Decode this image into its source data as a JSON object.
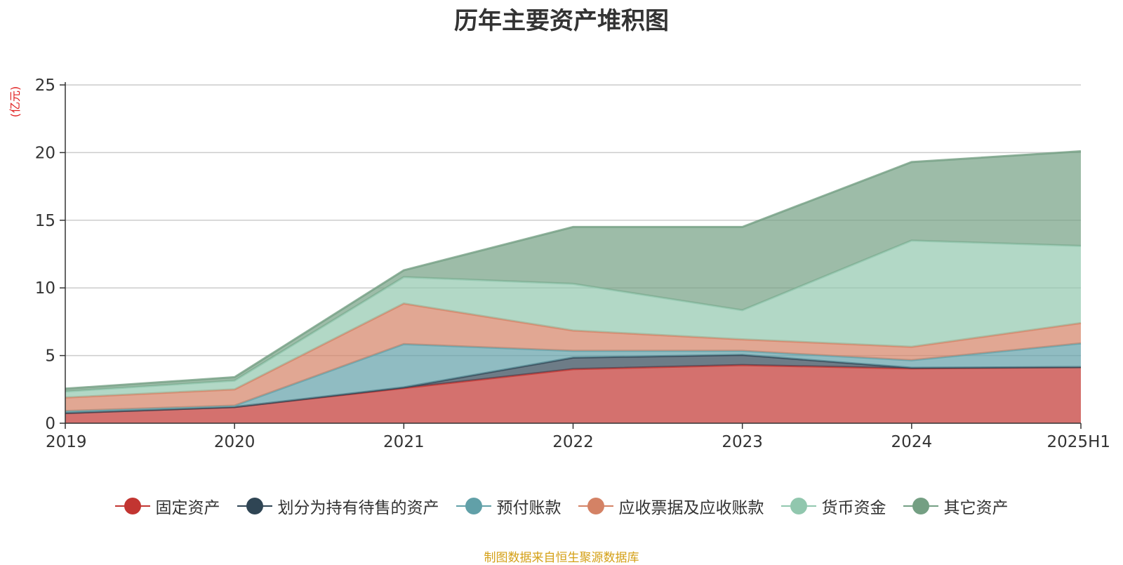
{
  "chart_data": {
    "type": "area",
    "stacked": true,
    "title": "历年主要资产堆积图",
    "ylabel": "(亿元)",
    "xlabel": "",
    "ylim": [
      0,
      25
    ],
    "yticks": [
      0,
      5,
      10,
      15,
      20,
      25
    ],
    "categories": [
      "2019",
      "2020",
      "2021",
      "2022",
      "2023",
      "2024",
      "2025H1"
    ],
    "grid": true,
    "legend_position": "bottom",
    "series": [
      {
        "name": "固定资产",
        "color": "#c23531",
        "values": [
          0.75,
          1.2,
          2.6,
          4.0,
          4.3,
          4.05,
          4.15
        ]
      },
      {
        "name": "划分为持有待售的资产",
        "color": "#2f4554",
        "values": [
          0.0,
          0.0,
          0.05,
          0.85,
          0.75,
          0.05,
          0.0
        ]
      },
      {
        "name": "预付账款",
        "color": "#61a0a8",
        "values": [
          0.15,
          0.1,
          3.2,
          0.5,
          0.3,
          0.55,
          1.75
        ]
      },
      {
        "name": "应收票据及应收账款",
        "color": "#d48265",
        "values": [
          1.0,
          1.2,
          3.0,
          1.5,
          0.85,
          1.0,
          1.5
        ]
      },
      {
        "name": "货币资金",
        "color": "#91c7ae",
        "values": [
          0.45,
          0.65,
          1.95,
          3.45,
          2.15,
          7.85,
          5.7
        ]
      },
      {
        "name": "其它资产",
        "color": "#749f83",
        "values": [
          0.2,
          0.25,
          0.5,
          4.2,
          6.15,
          5.8,
          7.0
        ]
      }
    ]
  },
  "footer": {
    "source": "制图数据来自恒生聚源数据库"
  }
}
